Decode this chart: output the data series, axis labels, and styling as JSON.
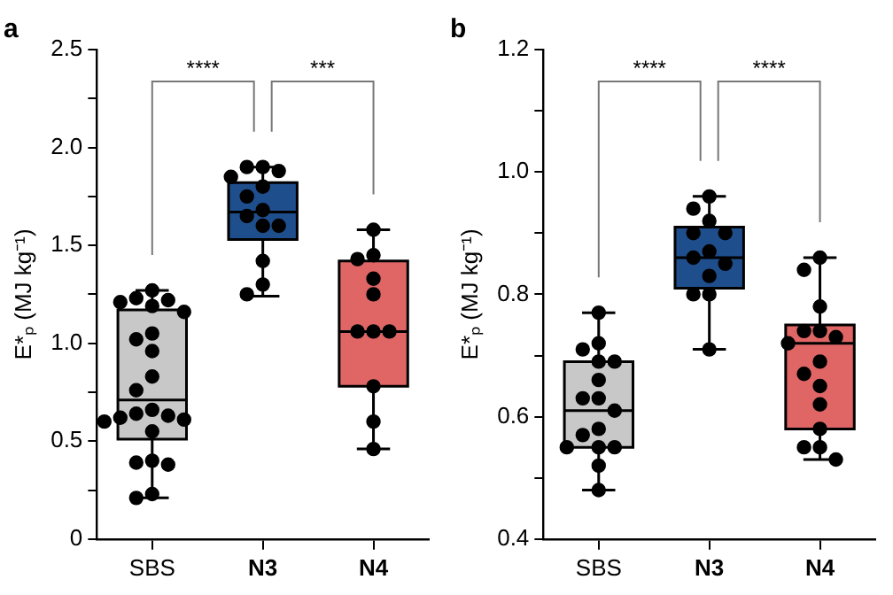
{
  "chart_data": [
    {
      "type": "box",
      "title": "a",
      "ylabel": "E*ₚ (MJ kg⁻¹)",
      "categories": [
        "SBS",
        "N3",
        "N4"
      ],
      "colors": [
        "#c8c8c8",
        "#1f4e8c",
        "#e06666"
      ],
      "boxes": [
        {
          "low": 0.21,
          "q1": 0.51,
          "median": 0.71,
          "q3": 1.17,
          "high": 1.27
        },
        {
          "low": 1.24,
          "q1": 1.53,
          "median": 1.67,
          "q3": 1.82,
          "high": 1.9
        },
        {
          "low": 0.46,
          "q1": 0.78,
          "median": 1.06,
          "q3": 1.42,
          "high": 1.58
        }
      ],
      "series": [
        {
          "type": "scatter",
          "color": "#000000",
          "x": [
            "SBS",
            "SBS",
            "SBS",
            "SBS",
            "SBS",
            "SBS",
            "SBS",
            "SBS",
            "SBS",
            "SBS",
            "SBS",
            "SBS",
            "SBS",
            "SBS",
            "SBS",
            "SBS",
            "SBS",
            "SBS",
            "SBS",
            "SBS",
            "SBS",
            "SBS",
            "SBS",
            "N3",
            "N3",
            "N3",
            "N3",
            "N3",
            "N3",
            "N3",
            "N3",
            "N3",
            "N3",
            "N3",
            "N3",
            "N3",
            "N4",
            "N4",
            "N4",
            "N4",
            "N4",
            "N4",
            "N4",
            "N4",
            "N4",
            "N4",
            "N4"
          ],
          "values": [
            1.27,
            1.23,
            1.22,
            1.21,
            1.19,
            1.16,
            1.05,
            1.02,
            0.96,
            0.83,
            0.76,
            0.66,
            0.64,
            0.63,
            0.62,
            0.61,
            0.6,
            0.55,
            0.4,
            0.39,
            0.38,
            0.23,
            0.21,
            1.9,
            1.9,
            1.88,
            1.85,
            1.8,
            1.75,
            1.68,
            1.65,
            1.6,
            1.6,
            1.42,
            1.3,
            1.25,
            1.58,
            1.45,
            1.43,
            1.33,
            1.25,
            1.06,
            1.06,
            1.06,
            0.78,
            0.6,
            0.46
          ]
        }
      ],
      "ylim": [
        0,
        2.5
      ],
      "yticks": [
        0,
        {
          "value": 0.25,
          "label": null
        },
        {
          "value": 0.5,
          "label": "0.5"
        },
        {
          "value": 0.75,
          "label": null
        },
        {
          "value": 1,
          "label": "1.0"
        },
        {
          "value": 1.25,
          "label": null
        },
        {
          "value": 1.5,
          "label": "1.5"
        },
        {
          "value": 1.75,
          "label": null
        },
        {
          "value": 2,
          "label": "2.0"
        },
        {
          "value": 2.25,
          "label": null
        },
        {
          "value": 2.5,
          "label": "2.5"
        }
      ],
      "annotations": [
        "****",
        "***"
      ]
    },
    {
      "type": "box",
      "title": "b",
      "ylabel": "E*ₚ (MJ kg⁻¹)",
      "categories": [
        "SBS",
        "N3",
        "N4"
      ],
      "colors": [
        "#c8c8c8",
        "#1f4e8c",
        "#e06666"
      ],
      "boxes": [
        {
          "low": 0.48,
          "q1": 0.55,
          "median": 0.61,
          "q3": 0.69,
          "high": 0.77
        },
        {
          "low": 0.71,
          "q1": 0.81,
          "median": 0.86,
          "q3": 0.91,
          "high": 0.96
        },
        {
          "low": 0.53,
          "q1": 0.58,
          "median": 0.72,
          "q3": 0.75,
          "high": 0.86
        }
      ],
      "series": [
        {
          "type": "scatter",
          "color": "#000000",
          "x": [
            "SBS",
            "SBS",
            "SBS",
            "SBS",
            "SBS",
            "SBS",
            "SBS",
            "SBS",
            "SBS",
            "SBS",
            "SBS",
            "SBS",
            "SBS",
            "SBS",
            "SBS",
            "SBS",
            "N3",
            "N3",
            "N3",
            "N3",
            "N3",
            "N3",
            "N3",
            "N3",
            "N3",
            "N3",
            "N3",
            "N3",
            "N4",
            "N4",
            "N4",
            "N4",
            "N4",
            "N4",
            "N4",
            "N4",
            "N4",
            "N4",
            "N4",
            "N4",
            "N4",
            "N4",
            "N4"
          ],
          "values": [
            0.77,
            0.72,
            0.71,
            0.69,
            0.69,
            0.66,
            0.63,
            0.63,
            0.61,
            0.58,
            0.57,
            0.55,
            0.55,
            0.55,
            0.52,
            0.48,
            0.96,
            0.94,
            0.92,
            0.9,
            0.9,
            0.87,
            0.86,
            0.85,
            0.83,
            0.8,
            0.8,
            0.71,
            0.86,
            0.84,
            0.78,
            0.74,
            0.74,
            0.73,
            0.72,
            0.69,
            0.67,
            0.65,
            0.62,
            0.58,
            0.55,
            0.55,
            0.53
          ]
        }
      ],
      "ylim": [
        0.4,
        1.2
      ],
      "yticks": [
        {
          "value": 0.4,
          "label": "0.4"
        },
        {
          "value": 0.5,
          "label": null
        },
        {
          "value": 0.6,
          "label": "0.6"
        },
        {
          "value": 0.7,
          "label": null
        },
        {
          "value": 0.8,
          "label": "0.8"
        },
        {
          "value": 0.9,
          "label": null
        },
        {
          "value": 1,
          "label": "1.0"
        },
        {
          "value": 1.1,
          "label": null
        },
        {
          "value": 1.2,
          "label": "1.2"
        }
      ],
      "annotations": [
        "****",
        "****"
      ]
    }
  ]
}
